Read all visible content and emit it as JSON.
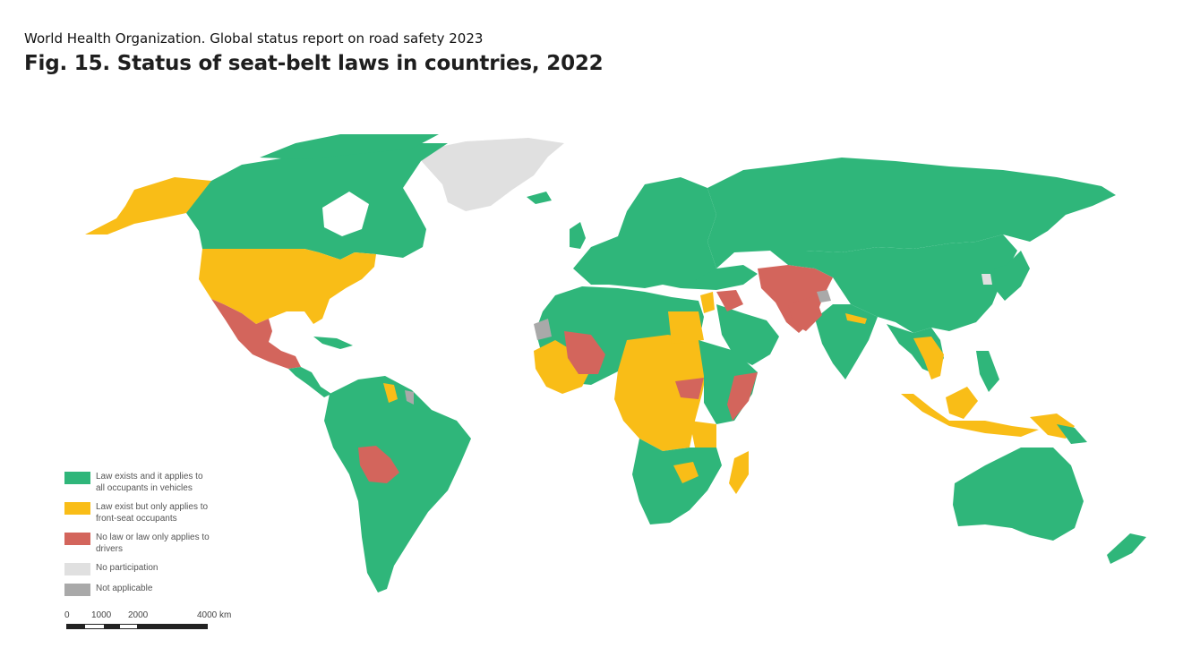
{
  "header": {
    "source": "World Health Organization. Global status report on road safety 2023",
    "title": "Fig. 15. Status of seat-belt laws in countries, 2022"
  },
  "colors": {
    "all_occupants": "#2fb67a",
    "front_seat": "#f9bd17",
    "no_law_or_drivers": "#d3655c",
    "no_participation": "#e0e0e0",
    "not_applicable": "#a9a9a9"
  },
  "legend": {
    "items": [
      {
        "label": "Law exists and it applies to\nall occupants in vehicles",
        "color": "#2fb67a"
      },
      {
        "label": "Law exist but only applies to\nfront-seat occupants",
        "color": "#f9bd17"
      },
      {
        "label": "No law or law only applies to\ndrivers",
        "color": "#d3655c"
      },
      {
        "label": "No participation",
        "color": "#e0e0e0"
      },
      {
        "label": "Not applicable",
        "color": "#a9a9a9"
      }
    ]
  },
  "scale": {
    "labels": [
      "0",
      "1000",
      "2000",
      "4000 km"
    ]
  }
}
